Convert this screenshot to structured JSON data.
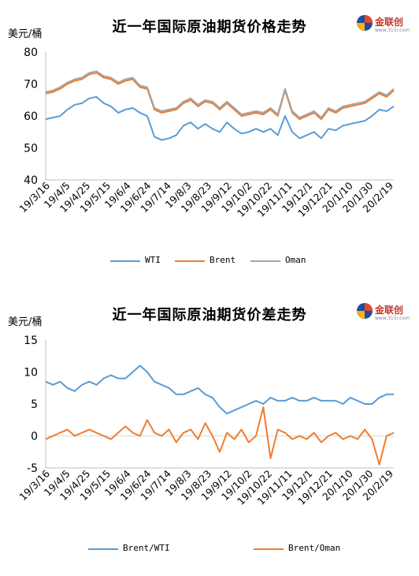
{
  "chart_data": [
    {
      "type": "line",
      "title": "近一年国际原油期货价格走势",
      "unit_label": "美元/桶",
      "ylim": [
        40,
        80
      ],
      "yticks": [
        40,
        50,
        60,
        70,
        80
      ],
      "xtick_labels": [
        "19/3/16",
        "19/4/5",
        "19/4/25",
        "19/5/15",
        "19/6/4",
        "19/6/24",
        "19/7/14",
        "19/8/3",
        "19/8/23",
        "19/9/12",
        "19/10/2",
        "19/10/22",
        "19/11/11",
        "19/12/1",
        "19/12/21",
        "20/1/10",
        "20/1/30",
        "20/2/19"
      ],
      "x_count": 49,
      "grid": false,
      "legend_position": "bottom",
      "series": [
        {
          "name": "WTI",
          "color": "#5b9bd5",
          "values": [
            59,
            59.5,
            60,
            62,
            63.5,
            64,
            65.5,
            66,
            64,
            63,
            61,
            62,
            62.5,
            61,
            60,
            53.5,
            52.5,
            53,
            54,
            57,
            58,
            56,
            57.5,
            56,
            55,
            58,
            56,
            54.5,
            55,
            56,
            55,
            56,
            54,
            60,
            55,
            53,
            54,
            55,
            53,
            56,
            55.5,
            57,
            57.5,
            58,
            58.5,
            60,
            62,
            61.5,
            63
          ]
        },
        {
          "name": "Brent",
          "color": "#ed7d31",
          "values": [
            67,
            67.5,
            68.5,
            70,
            71,
            71.5,
            73,
            73.5,
            72,
            71.5,
            70,
            71,
            71.5,
            69,
            68.5,
            62,
            61,
            61.5,
            62,
            64,
            65,
            63,
            64.5,
            64,
            62,
            64,
            62,
            60,
            60.5,
            61,
            60.5,
            62,
            60,
            68,
            61,
            59,
            60,
            61,
            59,
            62,
            61,
            62.5,
            63,
            63.5,
            64,
            65.5,
            67,
            66,
            68
          ]
        },
        {
          "name": "Oman",
          "color": "#a5a5a5",
          "values": [
            67.5,
            68,
            69,
            70.5,
            71.5,
            72,
            73.5,
            74,
            72.5,
            72,
            70.5,
            71.5,
            72,
            69.5,
            69,
            62.5,
            61.5,
            62,
            62.5,
            64.5,
            65.5,
            63.5,
            65,
            64.5,
            62.5,
            64.5,
            62.5,
            60.5,
            61,
            61.5,
            61,
            62.5,
            60.5,
            68.5,
            61.5,
            59.5,
            60.5,
            61.5,
            59.5,
            62.5,
            61.5,
            63,
            63.5,
            64,
            64.5,
            66,
            67.5,
            66.5,
            68.5
          ]
        }
      ]
    },
    {
      "type": "line",
      "title": "近一年国际原油期货价差走势",
      "unit_label": "美元/桶",
      "ylim": [
        -5,
        15
      ],
      "yticks": [
        -5,
        0,
        5,
        10,
        15
      ],
      "xtick_labels": [
        "19/3/16",
        "19/4/5",
        "19/4/25",
        "19/5/15",
        "19/6/4",
        "19/6/24",
        "19/7/14",
        "19/8/3",
        "19/8/23",
        "19/9/12",
        "19/10/2",
        "19/10/22",
        "19/11/11",
        "19/12/1",
        "19/12/21",
        "20/1/10",
        "20/1/30",
        "20/2/19"
      ],
      "x_count": 49,
      "grid": false,
      "legend_position": "bottom",
      "series": [
        {
          "name": "Brent/WTI",
          "color": "#5b9bd5",
          "values": [
            8.5,
            8,
            8.5,
            7.5,
            7,
            8,
            8.5,
            8,
            9,
            9.5,
            9,
            9,
            10,
            11,
            10,
            8.5,
            8,
            7.5,
            6.5,
            6.5,
            7,
            7.5,
            6.5,
            6,
            4.5,
            3.5,
            4,
            4.5,
            5,
            5.5,
            5,
            6,
            5.5,
            5.5,
            6,
            5.5,
            5.5,
            6,
            5.5,
            5.5,
            5.5,
            5,
            6,
            5.5,
            5,
            5,
            6,
            6.5,
            6.5
          ]
        },
        {
          "name": "Brent/Oman",
          "color": "#ed7d31",
          "values": [
            -0.5,
            0,
            0.5,
            1,
            0,
            0.5,
            1,
            0.5,
            0,
            -0.5,
            0.5,
            1.5,
            0.5,
            0,
            2.5,
            0.5,
            0,
            1,
            -1,
            0.5,
            1,
            -0.5,
            2,
            0,
            -2.5,
            0.5,
            -0.5,
            1,
            -1,
            0,
            4.5,
            -3.5,
            1,
            0.5,
            -0.5,
            0,
            -0.5,
            0.5,
            -1,
            0,
            0.5,
            -0.5,
            0,
            -0.5,
            1,
            -0.5,
            -4.5,
            0,
            0.5
          ]
        }
      ]
    }
  ],
  "logo": {
    "brand": "金联创",
    "site": "www.315i.com"
  }
}
